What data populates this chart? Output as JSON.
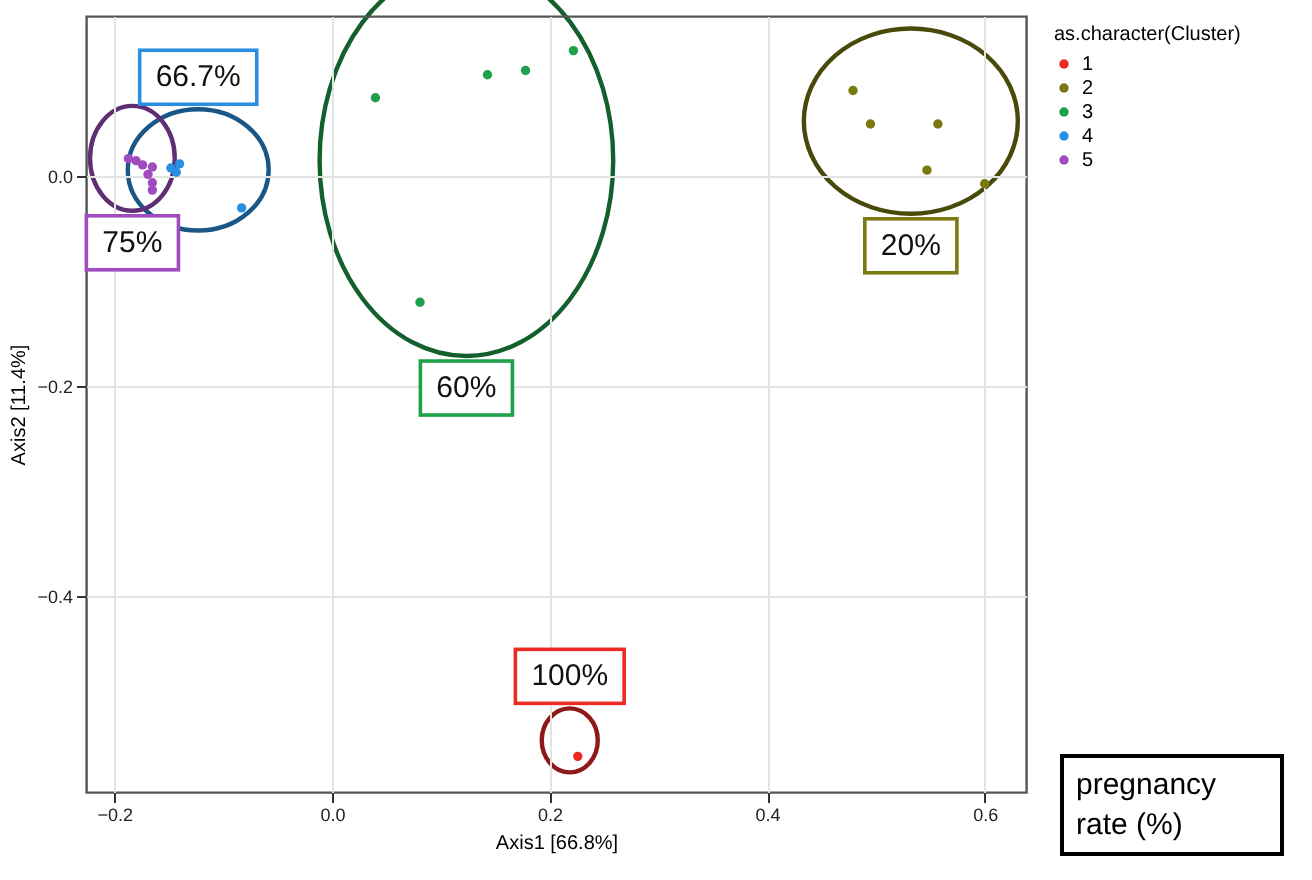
{
  "chart_data": {
    "type": "scatter",
    "xlabel": "Axis1 [66.8%]",
    "ylabel": "Axis2 [11.4%]",
    "legend_title": "as.character(Cluster)",
    "xlim": [
      -0.226,
      0.638
    ],
    "ylim": [
      -0.587,
      0.153
    ],
    "xticks": [
      -0.2,
      {
        "value": 0,
        "label": "0.0"
      },
      0.2,
      0.4,
      0.6
    ],
    "yticks": [
      -0.4,
      -0.2,
      {
        "value": 0,
        "label": "0.0"
      }
    ],
    "grid": true,
    "legend": "right",
    "marker": "circle",
    "series": [
      {
        "name": "1",
        "color": "#ee2a24",
        "x": [
          0.226
        ],
        "values": [
          -0.553
        ]
      },
      {
        "name": "2",
        "color": "#7a7a10",
        "x": [
          0.479,
          0.495,
          0.557,
          0.547,
          0.6
        ],
        "values": [
          0.082,
          0.05,
          0.05,
          0.006,
          -0.007
        ]
      },
      {
        "name": "3",
        "color": "#1fa04a",
        "x": [
          0.04,
          0.143,
          0.178,
          0.222,
          0.081
        ],
        "values": [
          0.075,
          0.097,
          0.101,
          0.12,
          -0.12
        ]
      },
      {
        "name": "4",
        "color": "#2b8fe0",
        "x": [
          -0.083,
          -0.148,
          -0.143,
          -0.14
        ],
        "values": [
          -0.03,
          0.008,
          0.004,
          0.012
        ]
      },
      {
        "name": "5",
        "color": "#a04cc0",
        "x": [
          -0.187,
          -0.18,
          -0.174,
          -0.165,
          -0.169,
          -0.165,
          -0.165
        ],
        "values": [
          0.017,
          0.015,
          0.011,
          0.009,
          0.002,
          -0.006,
          -0.013
        ]
      }
    ],
    "annotations": [
      "100%",
      "20%",
      "60%",
      "66.7%",
      "75%",
      "pregnancy rate (%)"
    ]
  }
}
